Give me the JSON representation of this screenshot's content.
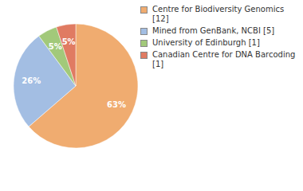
{
  "chart_data": {
    "type": "pie",
    "categories": [
      "Centre for Biodiversity Genomics [12]",
      "Mined from GenBank, NCBI [5]",
      "University of Edinburgh [1]",
      "Canadian Centre for DNA Barcoding [1]"
    ],
    "values": [
      63,
      26,
      5,
      5
    ],
    "value_labels": [
      "63%",
      "26%",
      "5%",
      "5%"
    ],
    "colors": [
      "#f0ac70",
      "#a3bee3",
      "#a2c97a",
      "#e07b62"
    ],
    "data_labels": true,
    "legend": "right"
  }
}
